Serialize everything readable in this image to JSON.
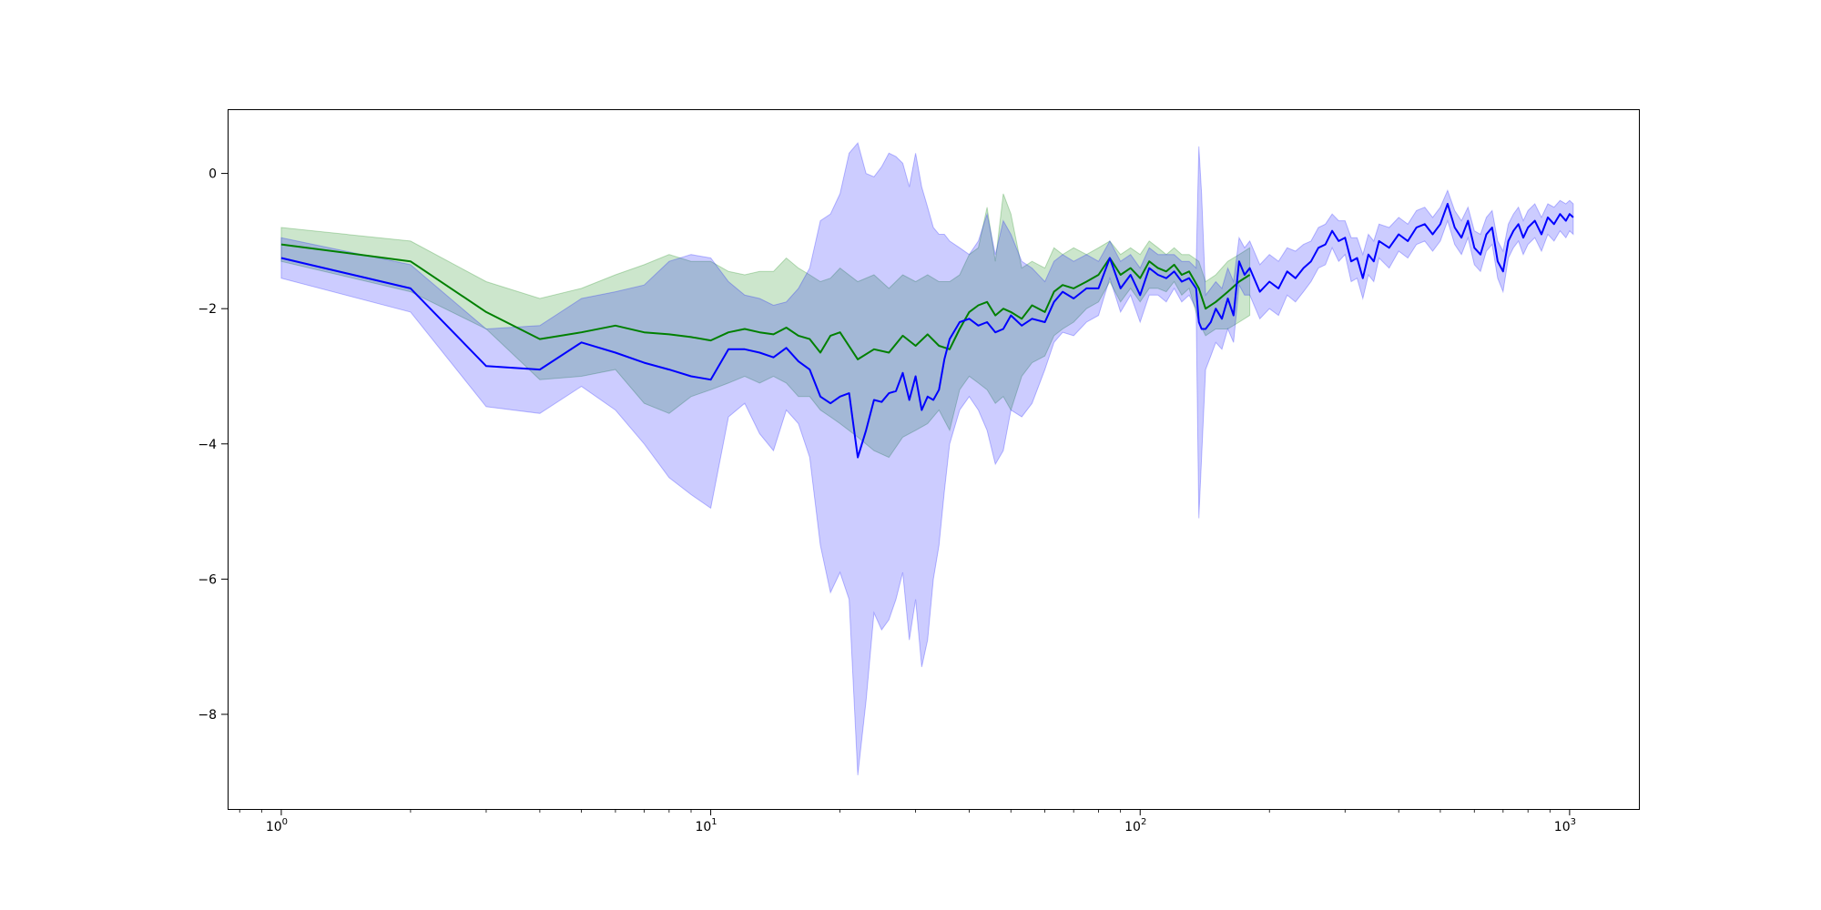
{
  "chart_data": {
    "type": "line",
    "title": "",
    "xlabel": "",
    "ylabel": "",
    "x_scale": "log",
    "xlim": [
      0.75,
      1450
    ],
    "ylim": [
      -9.4,
      0.95
    ],
    "grid": false,
    "legend": "none",
    "x_ticks": [
      {
        "value": 1,
        "base": "10",
        "exp": "0"
      },
      {
        "value": 10,
        "base": "10",
        "exp": "1"
      },
      {
        "value": 100,
        "base": "10",
        "exp": "2"
      },
      {
        "value": 1000,
        "base": "10",
        "exp": "3"
      }
    ],
    "y_ticks": [
      {
        "value": 0,
        "label": "0"
      },
      {
        "value": -2,
        "label": "−2"
      },
      {
        "value": -4,
        "label": "−4"
      },
      {
        "value": -6,
        "label": "−6"
      },
      {
        "value": -8,
        "label": "−8"
      }
    ],
    "series": [
      {
        "color": "#008000",
        "band_color": "#008000",
        "band_opacity": 0.2,
        "points": [
          [
            1,
            -1.05,
            -0.8,
            -1.3
          ],
          [
            2,
            -1.3,
            -1.0,
            -1.75
          ],
          [
            3,
            -2.05,
            -1.6,
            -2.3
          ],
          [
            4,
            -2.45,
            -1.85,
            -3.05
          ],
          [
            5,
            -2.35,
            -1.7,
            -3.0
          ],
          [
            6,
            -2.25,
            -1.5,
            -2.9
          ],
          [
            7,
            -2.35,
            -1.35,
            -3.4
          ],
          [
            8,
            -2.38,
            -1.2,
            -3.55
          ],
          [
            9,
            -2.42,
            -1.3,
            -3.3
          ],
          [
            10,
            -2.47,
            -1.3,
            -3.2
          ],
          [
            11,
            -2.35,
            -1.45,
            -3.1
          ],
          [
            12,
            -2.3,
            -1.5,
            -3.0
          ],
          [
            13,
            -2.35,
            -1.45,
            -3.1
          ],
          [
            14,
            -2.38,
            -1.45,
            -3.0
          ],
          [
            15,
            -2.28,
            -1.25,
            -3.1
          ],
          [
            16,
            -2.4,
            -1.4,
            -3.3
          ],
          [
            17,
            -2.45,
            -1.5,
            -3.3
          ],
          [
            18,
            -2.65,
            -1.6,
            -3.5
          ],
          [
            19,
            -2.4,
            -1.55,
            -3.6
          ],
          [
            20,
            -2.35,
            -1.4,
            -3.7
          ],
          [
            22,
            -2.75,
            -1.6,
            -3.9
          ],
          [
            24,
            -2.6,
            -1.5,
            -4.1
          ],
          [
            26,
            -2.65,
            -1.7,
            -4.2
          ],
          [
            28,
            -2.4,
            -1.5,
            -3.9
          ],
          [
            30,
            -2.55,
            -1.6,
            -3.8
          ],
          [
            32,
            -2.38,
            -1.5,
            -3.7
          ],
          [
            34,
            -2.55,
            -1.6,
            -3.5
          ],
          [
            36,
            -2.6,
            -1.6,
            -3.8
          ],
          [
            38,
            -2.3,
            -1.5,
            -3.2
          ],
          [
            40,
            -2.05,
            -1.2,
            -3.0
          ],
          [
            42,
            -1.95,
            -1.1,
            -3.1
          ],
          [
            44,
            -1.9,
            -0.5,
            -3.2
          ],
          [
            46,
            -2.1,
            -1.3,
            -3.4
          ],
          [
            48,
            -2.0,
            -0.3,
            -3.3
          ],
          [
            50,
            -2.05,
            -0.6,
            -3.5
          ],
          [
            53,
            -2.15,
            -1.4,
            -3.0
          ],
          [
            56,
            -1.95,
            -1.3,
            -2.8
          ],
          [
            60,
            -2.05,
            -1.4,
            -2.7
          ],
          [
            63,
            -1.75,
            -1.1,
            -2.4
          ],
          [
            66,
            -1.65,
            -1.2,
            -2.3
          ],
          [
            70,
            -1.7,
            -1.1,
            -2.2
          ],
          [
            75,
            -1.6,
            -1.2,
            -2.0
          ],
          [
            80,
            -1.5,
            -1.1,
            -1.9
          ],
          [
            85,
            -1.25,
            -1.0,
            -1.6
          ],
          [
            90,
            -1.5,
            -1.2,
            -1.9
          ],
          [
            95,
            -1.4,
            -1.1,
            -1.7
          ],
          [
            100,
            -1.55,
            -1.2,
            -1.9
          ],
          [
            105,
            -1.3,
            -1.0,
            -1.7
          ],
          [
            110,
            -1.4,
            -1.1,
            -1.7
          ],
          [
            115,
            -1.45,
            -1.2,
            -1.75
          ],
          [
            120,
            -1.35,
            -1.1,
            -1.6
          ],
          [
            125,
            -1.5,
            -1.2,
            -1.8
          ],
          [
            130,
            -1.45,
            -1.2,
            -1.7
          ],
          [
            137,
            -1.7,
            -1.3,
            -2.2
          ],
          [
            142,
            -2.0,
            -1.6,
            -2.4
          ],
          [
            150,
            -1.9,
            -1.5,
            -2.3
          ],
          [
            160,
            -1.75,
            -1.3,
            -2.3
          ],
          [
            170,
            -1.6,
            -1.2,
            -2.2
          ],
          [
            180,
            -1.5,
            -1.1,
            -2.1
          ]
        ]
      },
      {
        "color": "#0000ff",
        "band_color": "#0000ff",
        "band_opacity": 0.2,
        "points": [
          [
            1,
            -1.25,
            -0.95,
            -1.55
          ],
          [
            2,
            -1.7,
            -1.35,
            -2.05
          ],
          [
            3,
            -2.85,
            -2.3,
            -3.45
          ],
          [
            4,
            -2.9,
            -2.25,
            -3.55
          ],
          [
            5,
            -2.5,
            -1.85,
            -3.15
          ],
          [
            6,
            -2.65,
            -1.75,
            -3.5
          ],
          [
            7,
            -2.8,
            -1.65,
            -4.0
          ],
          [
            8,
            -2.9,
            -1.3,
            -4.5
          ],
          [
            9,
            -3.0,
            -1.2,
            -4.75
          ],
          [
            10,
            -3.05,
            -1.25,
            -4.95
          ],
          [
            11,
            -2.6,
            -1.6,
            -3.6
          ],
          [
            12,
            -2.6,
            -1.8,
            -3.4
          ],
          [
            13,
            -2.65,
            -1.85,
            -3.85
          ],
          [
            14,
            -2.72,
            -1.95,
            -4.1
          ],
          [
            15,
            -2.58,
            -1.9,
            -3.5
          ],
          [
            16,
            -2.78,
            -1.7,
            -3.7
          ],
          [
            17,
            -2.9,
            -1.4,
            -4.2
          ],
          [
            18,
            -3.3,
            -0.7,
            -5.5
          ],
          [
            19,
            -3.4,
            -0.6,
            -6.2
          ],
          [
            20,
            -3.3,
            -0.3,
            -5.9
          ],
          [
            21,
            -3.25,
            0.3,
            -6.3
          ],
          [
            22,
            -4.2,
            0.45,
            -8.9
          ],
          [
            23,
            -3.8,
            0.0,
            -7.8
          ],
          [
            24,
            -3.35,
            -0.05,
            -6.5
          ],
          [
            25,
            -3.38,
            0.1,
            -6.75
          ],
          [
            26,
            -3.25,
            0.3,
            -6.6
          ],
          [
            27,
            -3.22,
            0.25,
            -6.3
          ],
          [
            28,
            -2.95,
            0.15,
            -5.9
          ],
          [
            29,
            -3.35,
            -0.2,
            -6.9
          ],
          [
            30,
            -3.0,
            0.3,
            -6.3
          ],
          [
            31,
            -3.5,
            -0.2,
            -7.3
          ],
          [
            32,
            -3.3,
            -0.5,
            -6.9
          ],
          [
            33,
            -3.35,
            -0.8,
            -6.0
          ],
          [
            34,
            -3.2,
            -0.9,
            -5.5
          ],
          [
            35,
            -2.75,
            -0.9,
            -4.7
          ],
          [
            36,
            -2.45,
            -1.0,
            -4.0
          ],
          [
            38,
            -2.2,
            -1.1,
            -3.5
          ],
          [
            40,
            -2.15,
            -1.2,
            -3.3
          ],
          [
            42,
            -2.25,
            -1.0,
            -3.5
          ],
          [
            44,
            -2.2,
            -0.6,
            -3.8
          ],
          [
            46,
            -2.35,
            -1.2,
            -4.3
          ],
          [
            48,
            -2.3,
            -0.7,
            -4.1
          ],
          [
            50,
            -2.1,
            -0.9,
            -3.5
          ],
          [
            53,
            -2.25,
            -1.3,
            -3.6
          ],
          [
            56,
            -2.15,
            -1.4,
            -3.4
          ],
          [
            60,
            -2.2,
            -1.6,
            -2.9
          ],
          [
            63,
            -1.9,
            -1.3,
            -2.5
          ],
          [
            66,
            -1.75,
            -1.2,
            -2.35
          ],
          [
            70,
            -1.85,
            -1.3,
            -2.4
          ],
          [
            75,
            -1.7,
            -1.2,
            -2.2
          ],
          [
            80,
            -1.7,
            -1.3,
            -2.1
          ],
          [
            85,
            -1.25,
            -1.0,
            -1.55
          ],
          [
            90,
            -1.7,
            -1.3,
            -2.05
          ],
          [
            95,
            -1.5,
            -1.2,
            -1.8
          ],
          [
            100,
            -1.8,
            -1.4,
            -2.2
          ],
          [
            105,
            -1.4,
            -1.1,
            -1.8
          ],
          [
            110,
            -1.5,
            -1.2,
            -1.8
          ],
          [
            115,
            -1.55,
            -1.2,
            -1.9
          ],
          [
            120,
            -1.45,
            -1.2,
            -1.7
          ],
          [
            125,
            -1.6,
            -1.3,
            -1.9
          ],
          [
            130,
            -1.55,
            -1.3,
            -1.8
          ],
          [
            135,
            -1.7,
            -1.4,
            -2.0
          ],
          [
            137,
            -2.2,
            0.4,
            -5.1
          ],
          [
            139,
            -2.3,
            -0.3,
            -4.2
          ],
          [
            142,
            -2.3,
            -1.8,
            -2.9
          ],
          [
            146,
            -2.2,
            -1.7,
            -2.7
          ],
          [
            150,
            -2.0,
            -1.6,
            -2.5
          ],
          [
            155,
            -2.15,
            -1.7,
            -2.6
          ],
          [
            160,
            -1.85,
            -1.4,
            -2.3
          ],
          [
            165,
            -2.1,
            -1.6,
            -2.5
          ],
          [
            170,
            -1.3,
            -0.95,
            -1.65
          ],
          [
            175,
            -1.5,
            -1.1,
            -1.8
          ],
          [
            180,
            -1.4,
            -1.0,
            -1.8
          ],
          [
            190,
            -1.75,
            -1.35,
            -2.15
          ],
          [
            200,
            -1.6,
            -1.2,
            -2.0
          ],
          [
            210,
            -1.7,
            -1.3,
            -2.1
          ],
          [
            220,
            -1.45,
            -1.1,
            -1.8
          ],
          [
            230,
            -1.55,
            -1.15,
            -1.9
          ],
          [
            240,
            -1.4,
            -1.05,
            -1.75
          ],
          [
            250,
            -1.3,
            -1.0,
            -1.6
          ],
          [
            260,
            -1.1,
            -0.8,
            -1.4
          ],
          [
            270,
            -1.05,
            -0.75,
            -1.35
          ],
          [
            280,
            -0.85,
            -0.6,
            -1.1
          ],
          [
            290,
            -1.0,
            -0.7,
            -1.3
          ],
          [
            300,
            -0.95,
            -0.7,
            -1.2
          ],
          [
            310,
            -1.3,
            -0.95,
            -1.6
          ],
          [
            320,
            -1.25,
            -0.95,
            -1.55
          ],
          [
            330,
            -1.55,
            -1.2,
            -1.85
          ],
          [
            340,
            -1.2,
            -0.9,
            -1.5
          ],
          [
            350,
            -1.3,
            -1.0,
            -1.6
          ],
          [
            360,
            -1.0,
            -0.75,
            -1.25
          ],
          [
            380,
            -1.1,
            -0.8,
            -1.4
          ],
          [
            400,
            -0.9,
            -0.65,
            -1.15
          ],
          [
            420,
            -1.0,
            -0.75,
            -1.25
          ],
          [
            440,
            -0.8,
            -0.55,
            -1.05
          ],
          [
            460,
            -0.75,
            -0.5,
            -1.0
          ],
          [
            480,
            -0.9,
            -0.65,
            -1.15
          ],
          [
            500,
            -0.75,
            -0.5,
            -1.0
          ],
          [
            520,
            -0.45,
            -0.25,
            -0.7
          ],
          [
            540,
            -0.8,
            -0.55,
            -1.05
          ],
          [
            560,
            -0.95,
            -0.7,
            -1.2
          ],
          [
            580,
            -0.7,
            -0.5,
            -0.95
          ],
          [
            600,
            -1.1,
            -0.85,
            -1.35
          ],
          [
            620,
            -1.2,
            -0.9,
            -1.45
          ],
          [
            640,
            -0.9,
            -0.65,
            -1.15
          ],
          [
            660,
            -0.8,
            -0.55,
            -1.05
          ],
          [
            680,
            -1.3,
            -1.0,
            -1.55
          ],
          [
            700,
            -1.45,
            -1.15,
            -1.75
          ],
          [
            720,
            -1.0,
            -0.75,
            -1.25
          ],
          [
            740,
            -0.85,
            -0.6,
            -1.1
          ],
          [
            760,
            -0.75,
            -0.5,
            -1.0
          ],
          [
            780,
            -0.95,
            -0.7,
            -1.2
          ],
          [
            800,
            -0.8,
            -0.55,
            -1.05
          ],
          [
            830,
            -0.7,
            -0.45,
            -0.95
          ],
          [
            860,
            -0.9,
            -0.65,
            -1.15
          ],
          [
            890,
            -0.65,
            -0.45,
            -0.9
          ],
          [
            920,
            -0.75,
            -0.5,
            -1.0
          ],
          [
            950,
            -0.6,
            -0.4,
            -0.85
          ],
          [
            980,
            -0.7,
            -0.45,
            -0.95
          ],
          [
            1000,
            -0.6,
            -0.4,
            -0.85
          ],
          [
            1020,
            -0.65,
            -0.45,
            -0.9
          ]
        ]
      }
    ]
  }
}
